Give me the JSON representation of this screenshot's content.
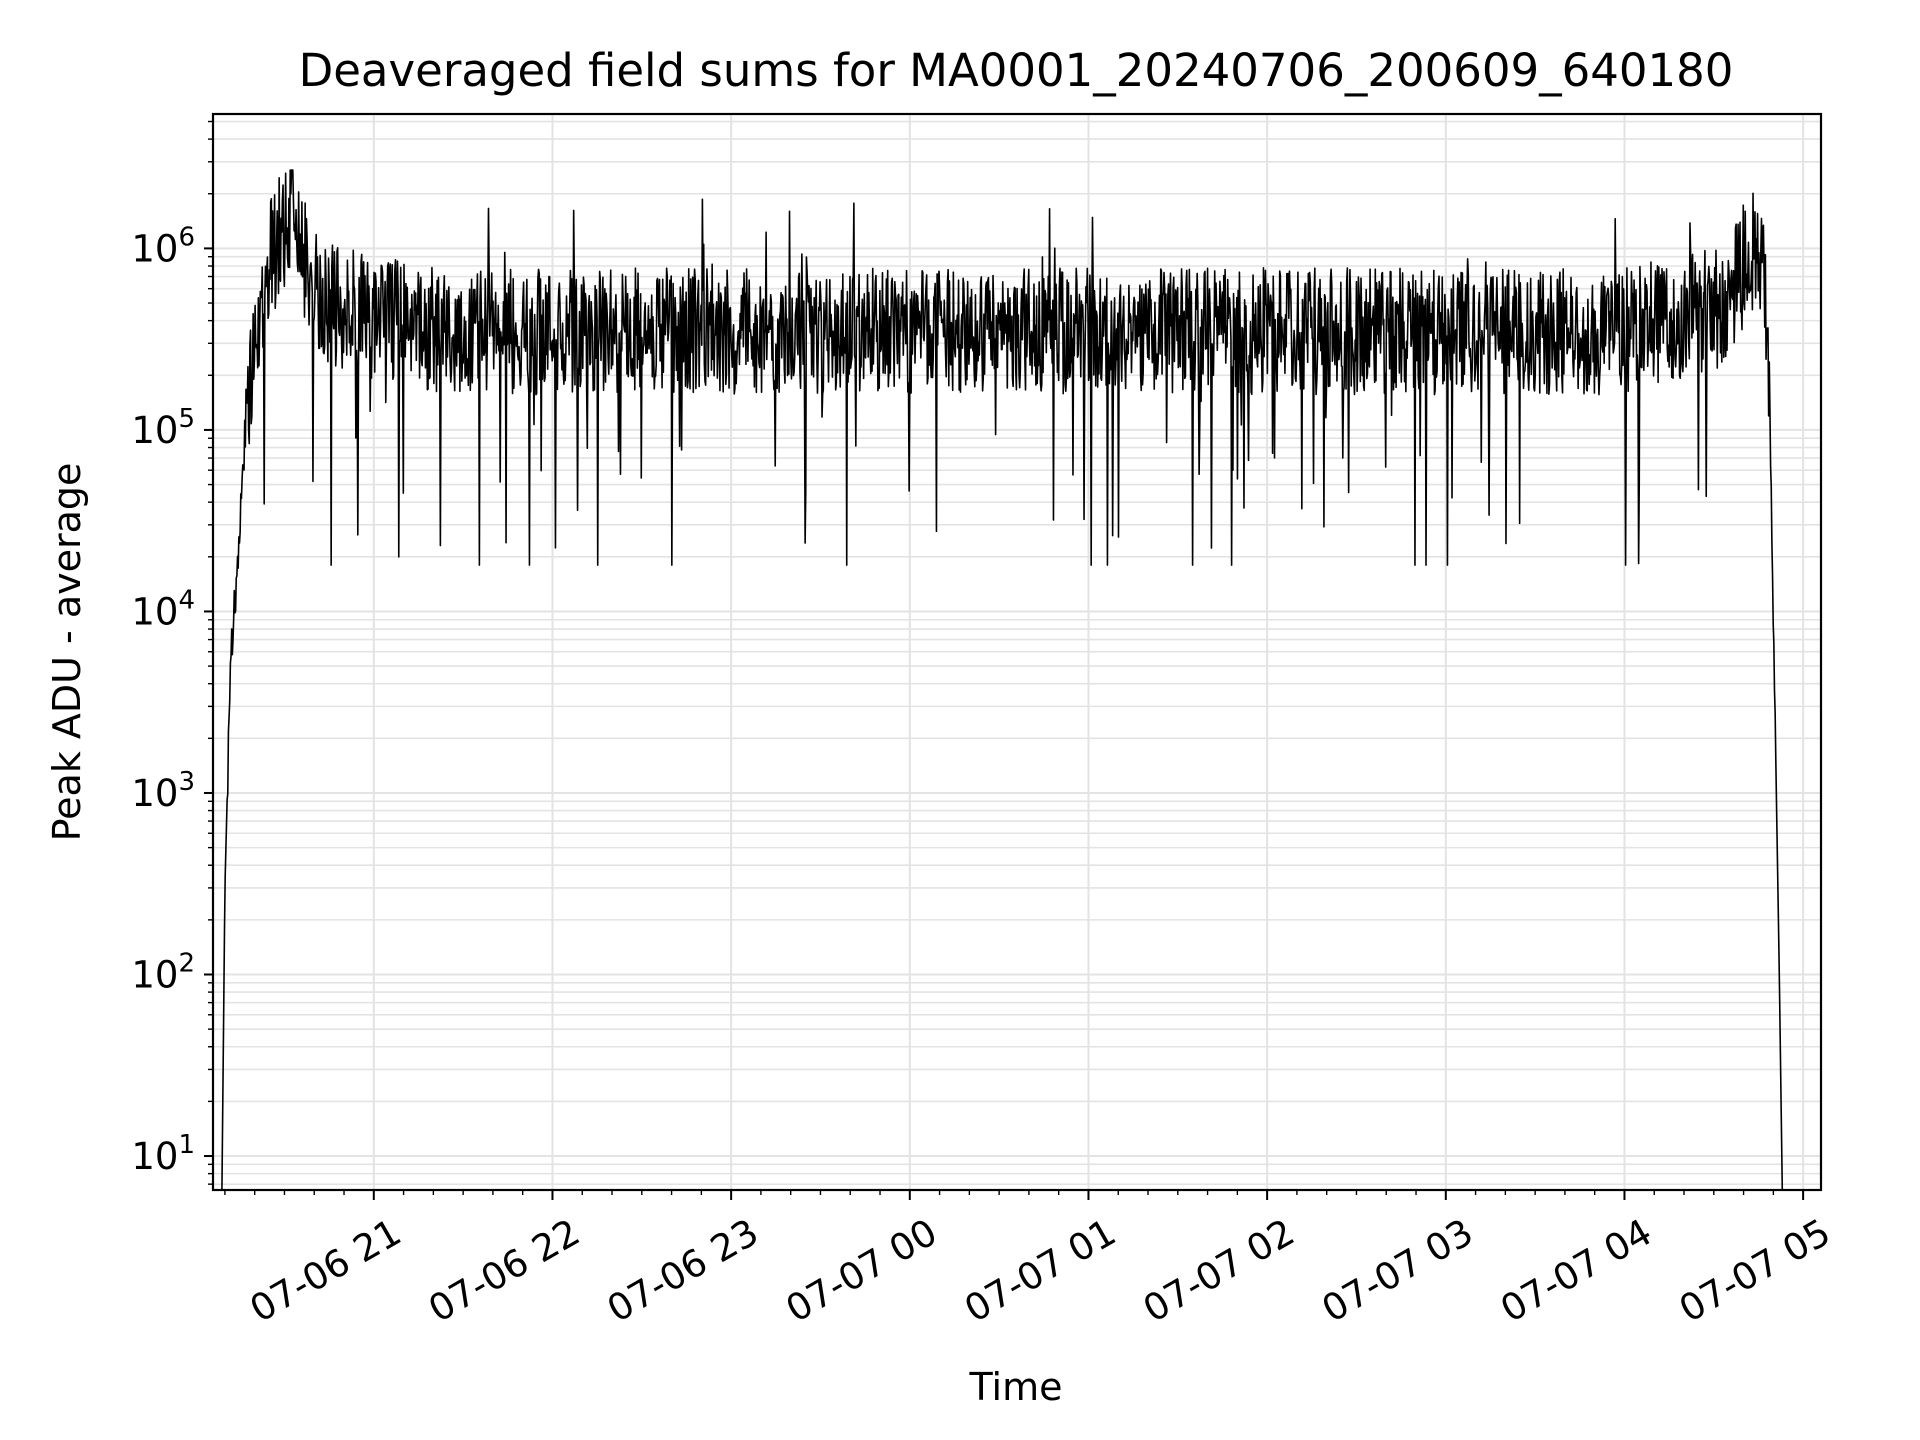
{
  "chart_data": {
    "type": "line",
    "title": "Deaveraged field sums for MA0001_20240706_200609_640180",
    "xlabel": "Time",
    "ylabel": "Peak ADU - average",
    "yscale": "log",
    "ylim": [
      6.5,
      5500000
    ],
    "xlim": [
      "2024-07-06 20:06",
      "2024-07-07 05:06"
    ],
    "grid": true,
    "x_tick_labels": [
      "07-06 21",
      "07-06 22",
      "07-06 23",
      "07-07 00",
      "07-07 01",
      "07-07 02",
      "07-07 03",
      "07-07 04",
      "07-07 05"
    ],
    "x_ticks": [
      "2024-07-06 21:00",
      "2024-07-06 22:00",
      "2024-07-06 23:00",
      "2024-07-07 00:00",
      "2024-07-07 01:00",
      "2024-07-07 02:00",
      "2024-07-07 03:00",
      "2024-07-07 04:00",
      "2024-07-07 05:00"
    ],
    "y_ticks": [
      {
        "value": 10,
        "base": "10",
        "exp": "1"
      },
      {
        "value": 100,
        "base": "10",
        "exp": "2"
      },
      {
        "value": 1000,
        "base": "10",
        "exp": "3"
      },
      {
        "value": 10000,
        "base": "10",
        "exp": "4"
      },
      {
        "value": 100000,
        "base": "10",
        "exp": "5"
      },
      {
        "value": 1000000,
        "base": "10",
        "exp": "6"
      }
    ],
    "series_color": "#000000",
    "series": [
      {
        "x": [
          "2024-07-06 20:09",
          "2024-07-06 20:10",
          "2024-07-06 20:12",
          "2024-07-06 20:14",
          "2024-07-06 20:17",
          "2024-07-06 20:20",
          "2024-07-06 20:24",
          "2024-07-06 20:28",
          "2024-07-06 20:32",
          "2024-07-06 20:38",
          "2024-07-06 20:45",
          "2024-07-06 21:00",
          "2024-07-06 21:30",
          "2024-07-06 22:00",
          "2024-07-06 23:00",
          "2024-07-07 00:00",
          "2024-07-07 01:00",
          "2024-07-07 02:00",
          "2024-07-07 03:00",
          "2024-07-07 04:00",
          "2024-07-07 04:30",
          "2024-07-07 04:38",
          "2024-07-07 04:42",
          "2024-07-07 04:45",
          "2024-07-07 04:48",
          "2024-07-07 04:50",
          "2024-07-07 04:52",
          "2024-07-07 04:53"
        ],
        "values": [
          6.5,
          300,
          6000,
          15000,
          100000,
          250000,
          700000,
          1200000,
          1500000,
          700000,
          500000,
          400000,
          350000,
          350000,
          350000,
          350000,
          350000,
          350000,
          350000,
          350000,
          450000,
          700000,
          1000000,
          900000,
          450000,
          10000,
          100,
          6.5
        ],
        "max_peak": 2700000,
        "min_dip": 18000
      }
    ]
  }
}
